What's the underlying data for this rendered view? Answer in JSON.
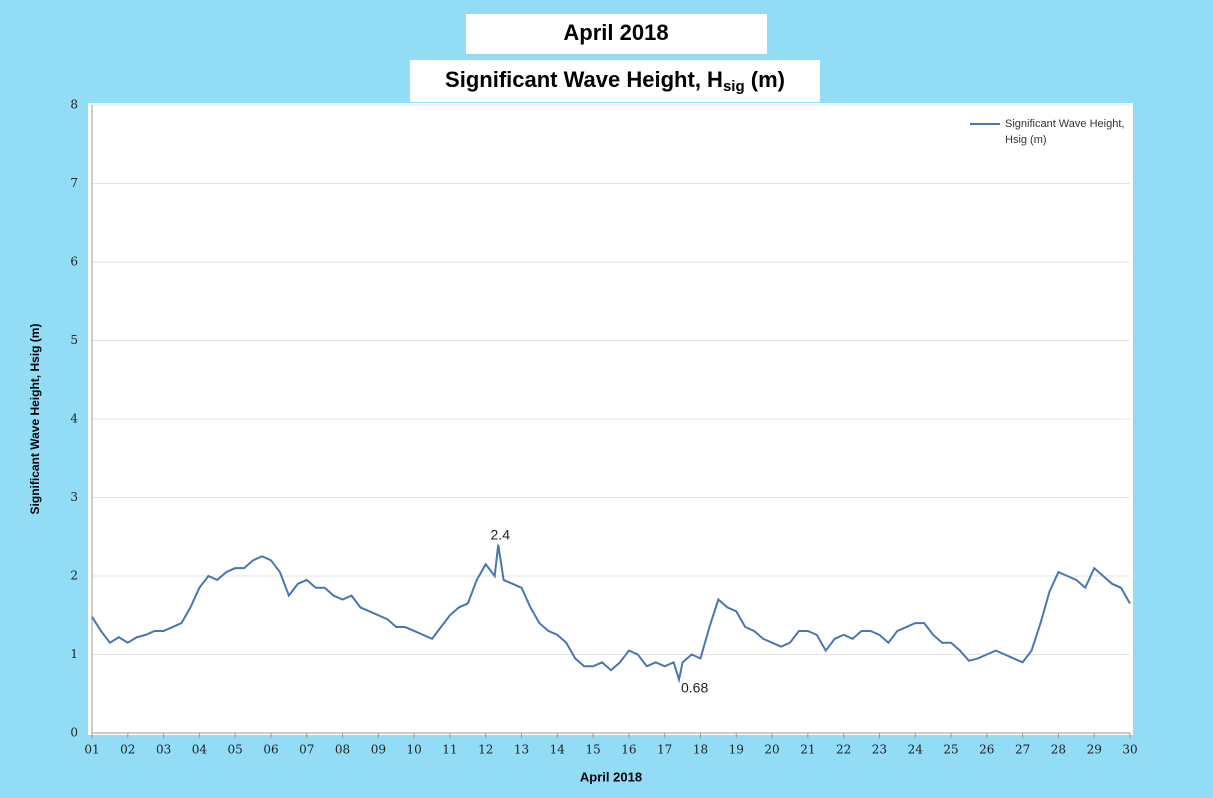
{
  "chart_data": {
    "type": "line",
    "title": "April 2018",
    "subtitle": "Significant Wave Height, H",
    "subtitle_subscript": "sig",
    "subtitle_end": " (m)",
    "x_label": "April 2018",
    "y_label": "Significant Wave Height, Hsig (m)",
    "xlim": [
      1,
      30
    ],
    "ylim": [
      0,
      8
    ],
    "yticks": [
      0,
      1,
      2,
      3,
      4,
      5,
      6,
      7,
      8
    ],
    "xticks": [
      {
        "value": 1,
        "label": "01"
      },
      {
        "value": 2,
        "label": "02"
      },
      {
        "value": 3,
        "label": "03"
      },
      {
        "value": 4,
        "label": "04"
      },
      {
        "value": 5,
        "label": "05"
      },
      {
        "value": 6,
        "label": "06"
      },
      {
        "value": 7,
        "label": "07"
      },
      {
        "value": 8,
        "label": "08"
      },
      {
        "value": 9,
        "label": "09"
      },
      {
        "value": 10,
        "label": "10"
      },
      {
        "value": 11,
        "label": "11"
      },
      {
        "value": 12,
        "label": "12"
      },
      {
        "value": 13,
        "label": "13"
      },
      {
        "value": 14,
        "label": "14"
      },
      {
        "value": 15,
        "label": "15"
      },
      {
        "value": 16,
        "label": "16"
      },
      {
        "value": 17,
        "label": "17"
      },
      {
        "value": 18,
        "label": "18"
      },
      {
        "value": 19,
        "label": "19"
      },
      {
        "value": 20,
        "label": "20"
      },
      {
        "value": 21,
        "label": "21"
      },
      {
        "value": 22,
        "label": "22"
      },
      {
        "value": 23,
        "label": "23"
      },
      {
        "value": 24,
        "label": "24"
      },
      {
        "value": 25,
        "label": "25"
      },
      {
        "value": 26,
        "label": "26"
      },
      {
        "value": 27,
        "label": "27"
      },
      {
        "value": 28,
        "label": "28"
      },
      {
        "value": 29,
        "label": "29"
      },
      {
        "value": 30,
        "label": "30"
      }
    ],
    "grid": true,
    "legend": "upper right",
    "x": [
      1,
      1.25,
      1.5,
      1.75,
      2,
      2.25,
      2.5,
      2.75,
      3,
      3.25,
      3.5,
      3.75,
      4,
      4.25,
      4.5,
      4.75,
      5,
      5.25,
      5.5,
      5.75,
      6,
      6.25,
      6.5,
      6.75,
      7,
      7.25,
      7.5,
      7.75,
      8,
      8.25,
      8.5,
      8.75,
      9,
      9.25,
      9.5,
      9.75,
      10,
      10.25,
      10.5,
      10.75,
      11,
      11.25,
      11.5,
      11.75,
      12,
      12.25,
      12.35,
      12.5,
      12.75,
      13,
      13.25,
      13.5,
      13.75,
      14,
      14.25,
      14.5,
      14.75,
      15,
      15.25,
      15.5,
      15.75,
      16,
      16.25,
      16.5,
      16.75,
      17,
      17.25,
      17.4,
      17.5,
      17.75,
      18,
      18.25,
      18.5,
      18.75,
      19,
      19.25,
      19.5,
      19.75,
      20,
      20.25,
      20.5,
      20.75,
      21,
      21.25,
      21.5,
      21.75,
      22,
      22.25,
      22.5,
      22.75,
      23,
      23.25,
      23.5,
      23.75,
      24,
      24.25,
      24.5,
      24.75,
      25,
      25.25,
      25.5,
      25.75,
      26,
      26.25,
      26.5,
      26.75,
      27,
      27.25,
      27.5,
      27.75,
      28,
      28.25,
      28.5,
      28.75,
      29,
      29.25,
      29.5,
      29.75,
      30
    ],
    "series": [
      {
        "name": "Significant Wave Height, Hsig (m)",
        "color": "#4a76b0",
        "values": [
          1.48,
          1.3,
          1.15,
          1.22,
          1.15,
          1.22,
          1.25,
          1.3,
          1.3,
          1.35,
          1.4,
          1.6,
          1.85,
          2.0,
          1.95,
          2.05,
          2.1,
          2.1,
          2.2,
          2.25,
          2.2,
          2.05,
          1.75,
          1.9,
          1.95,
          1.85,
          1.85,
          1.75,
          1.7,
          1.75,
          1.6,
          1.55,
          1.5,
          1.45,
          1.35,
          1.35,
          1.3,
          1.25,
          1.2,
          1.35,
          1.5,
          1.6,
          1.65,
          1.95,
          2.15,
          2.0,
          2.4,
          1.95,
          1.9,
          1.85,
          1.6,
          1.4,
          1.3,
          1.25,
          1.15,
          0.95,
          0.85,
          0.85,
          0.9,
          0.8,
          0.9,
          1.05,
          1.0,
          0.85,
          0.9,
          0.85,
          0.9,
          0.68,
          0.9,
          1.0,
          0.95,
          1.35,
          1.7,
          1.6,
          1.55,
          1.35,
          1.3,
          1.2,
          1.15,
          1.1,
          1.15,
          1.3,
          1.3,
          1.25,
          1.05,
          1.2,
          1.25,
          1.2,
          1.3,
          1.3,
          1.25,
          1.15,
          1.3,
          1.35,
          1.4,
          1.4,
          1.25,
          1.15,
          1.15,
          1.05,
          0.92,
          0.95,
          1.0,
          1.05,
          1.0,
          0.95,
          0.9,
          1.05,
          1.4,
          1.8,
          2.05,
          2.0,
          1.95,
          1.85,
          2.1,
          2.0,
          1.9,
          1.85,
          1.65
        ]
      }
    ],
    "annotations": [
      {
        "text": "2.4",
        "x": 12.35,
        "y": 2.4
      },
      {
        "text": "0.68",
        "x": 17.4,
        "y": 0.68
      }
    ]
  }
}
